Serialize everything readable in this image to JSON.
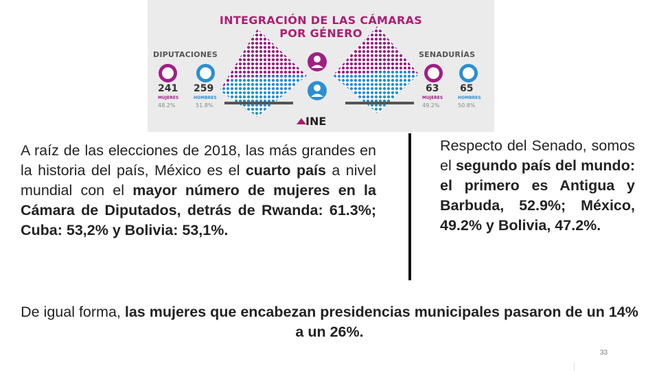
{
  "infographic": {
    "title_line1": "INTEGRACIÓN DE LAS CÁMARAS",
    "title_line2": "POR GÉNERO",
    "diputaciones": {
      "label": "DIPUTACIONES",
      "mujeres": {
        "count": "241",
        "label": "MUJERES",
        "pct": "48.2%"
      },
      "hombres": {
        "count": "259",
        "label": "HOMBRES",
        "pct": "51.8%"
      }
    },
    "senadurias": {
      "label": "SENADURÍAS",
      "mujeres": {
        "count": "63",
        "label": "MUJERES",
        "pct": "49.2%"
      },
      "hombres": {
        "count": "65",
        "label": "HOMBRES",
        "pct": "50.8%"
      }
    },
    "logo_text": "INE",
    "colors": {
      "mujeres": "#a01f86",
      "hombres": "#2b8fd1",
      "title": "#ad1e73"
    },
    "icons": [
      "woman-icon",
      "man-icon"
    ]
  },
  "left_paragraph": {
    "p1": "A raíz de las elecciones de 2018, las más grandes en la historia del país, México es el ",
    "b1": "cuarto país",
    "p2": " a nivel mundial con el ",
    "b2": "mayor número de mujeres en la Cámara de Diputados, detrás de Rwanda: 61.3%; Cuba: 53,2% y Bolivia: 53,1%."
  },
  "right_paragraph": {
    "p1": "Respecto del Senado, somos el ",
    "b1": "segundo país del mundo: el primero es Antigua y Barbuda, 52.9%; México, 49.2% y Bolivia, 47.2%."
  },
  "bottom_text": {
    "p1": "De igual forma, ",
    "b1": "las mujeres que encabezan presidencias municipales pasaron de un 14% a un 26%."
  },
  "page_number": "33"
}
